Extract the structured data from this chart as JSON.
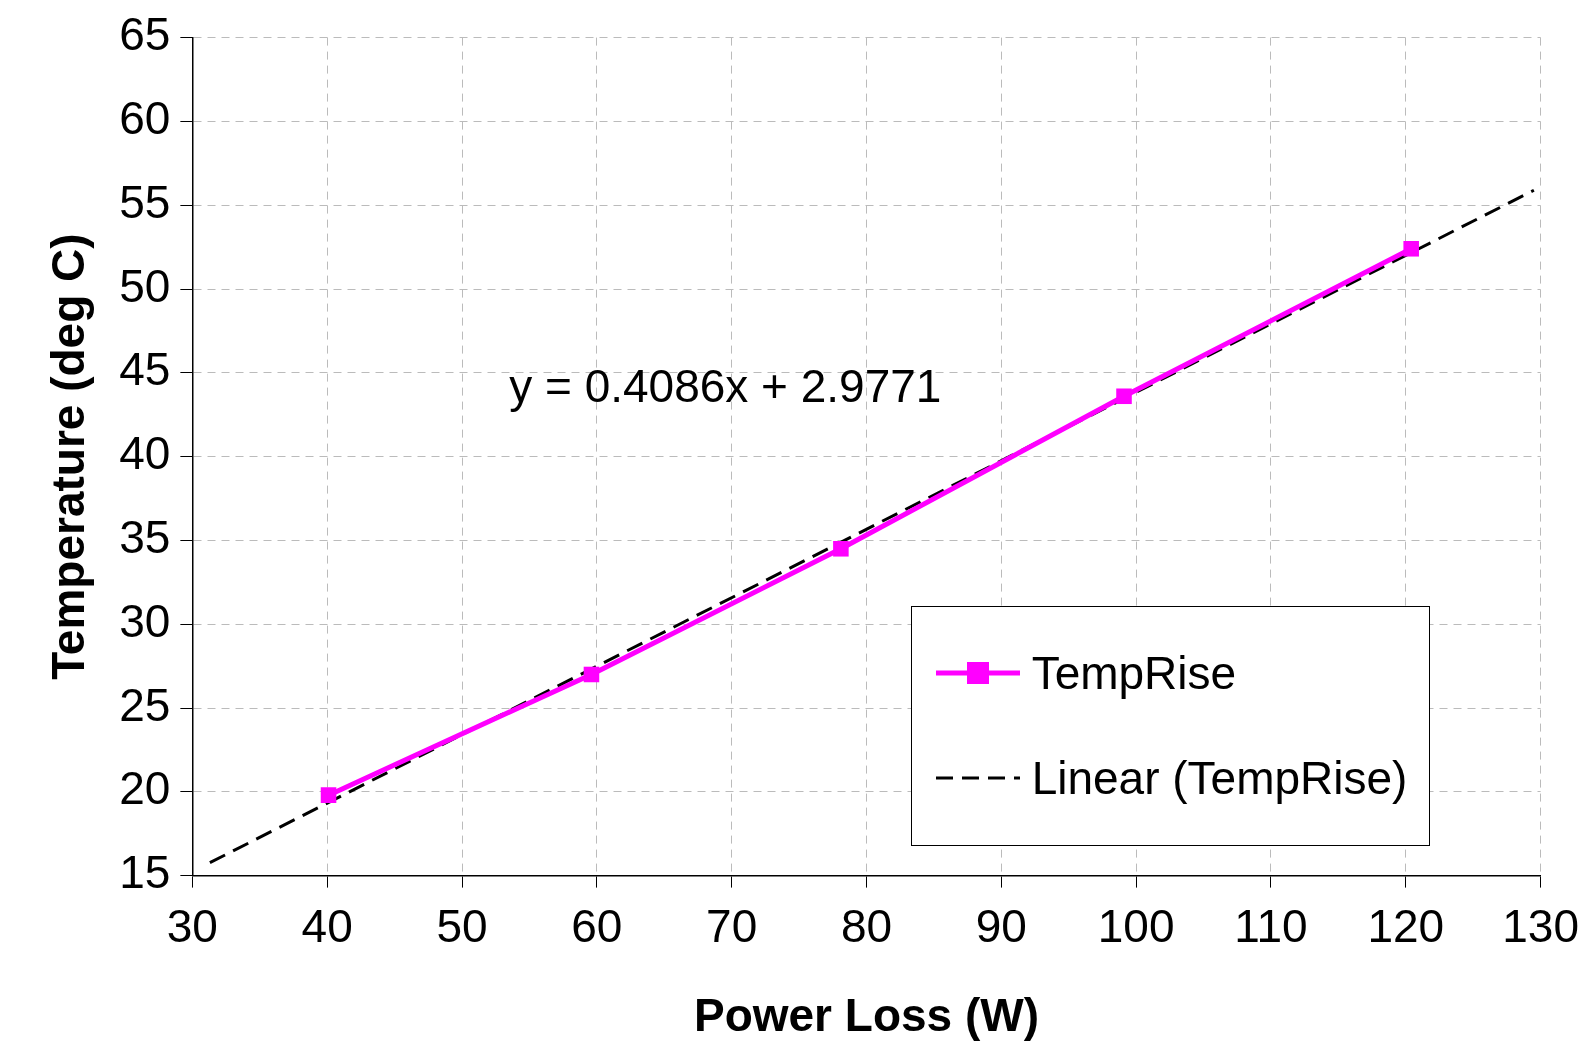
{
  "chart_data": {
    "type": "line",
    "xlabel": "Power Loss (W)",
    "ylabel": "Temperature (deg C)",
    "xlim": [
      30,
      130
    ],
    "xticks": [
      30,
      40,
      50,
      60,
      70,
      80,
      90,
      100,
      110,
      120,
      130
    ],
    "ylim": [
      15,
      65
    ],
    "yticks": [
      15,
      20,
      25,
      30,
      35,
      40,
      45,
      50,
      55,
      60,
      65
    ],
    "grid": true,
    "legend": "bottom right",
    "annotations": [
      "y = 0.4086x + 2.9771"
    ],
    "series": [
      {
        "name": "TempRise",
        "color": "#ff00ff",
        "marker": "square",
        "line_style": "solid",
        "x": [
          40.1,
          59.6,
          78.1,
          99.1,
          120.4
        ],
        "values": [
          19.8,
          27,
          34.5,
          43.6,
          52.4
        ]
      },
      {
        "name": "Linear (TempRise)",
        "color": "#000000",
        "marker": "none",
        "line_style": "dashed",
        "x": [
          31.3,
          129.5
        ],
        "values": [
          15.77,
          55.89
        ]
      }
    ]
  }
}
